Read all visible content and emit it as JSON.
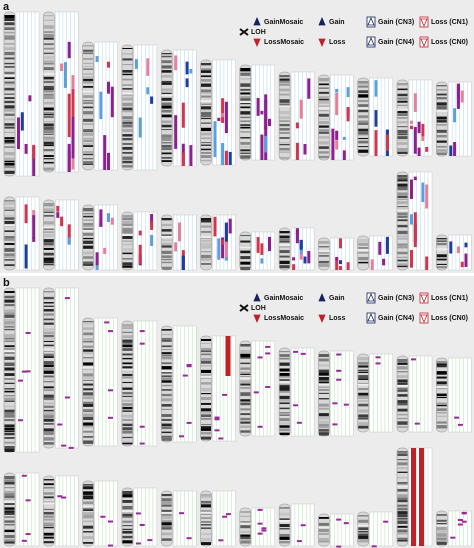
{
  "panels": [
    {
      "label": "a",
      "legend": [
        "LOH",
        "GainMosaic",
        "LossMosaic",
        "Gain",
        "Loss",
        "Gain (CN3)",
        "Gain (CN4)",
        "Loss (CN1)",
        "Loss (CN0)"
      ]
    },
    {
      "label": "b",
      "legend": [
        "LOH",
        "GainMosaic",
        "LossMosaic",
        "Gain",
        "Loss",
        "Gain (CN3)",
        "Gain (CN4)",
        "Loss (CN1)",
        "Loss (CN0)"
      ]
    }
  ]
}
